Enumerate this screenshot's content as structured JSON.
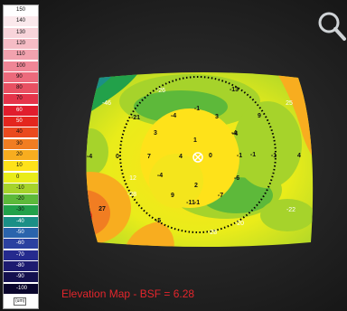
{
  "scale": {
    "unit": "(um)",
    "steps": [
      {
        "label": "150",
        "color": "#ffffff"
      },
      {
        "label": "140",
        "color": "#fbe9ec"
      },
      {
        "label": "130",
        "color": "#f8d4da"
      },
      {
        "label": "120",
        "color": "#f5bcc5"
      },
      {
        "label": "110",
        "color": "#f2a2ae"
      },
      {
        "label": "100",
        "color": "#ef8696"
      },
      {
        "label": "90",
        "color": "#ec6a7c"
      },
      {
        "label": "80",
        "color": "#e85062"
      },
      {
        "label": "70",
        "color": "#e5344a"
      },
      {
        "label": "60",
        "color": "#e11d2d"
      },
      {
        "label": "50",
        "color": "#e4261e"
      },
      {
        "label": "40",
        "color": "#ea4a1f"
      },
      {
        "label": "30",
        "color": "#f17d22"
      },
      {
        "label": "20",
        "color": "#f8ad1f"
      },
      {
        "label": "10",
        "color": "#fee21a"
      },
      {
        "label": "0",
        "color": "#e9ec1a"
      },
      {
        "label": "-10",
        "color": "#a6d32b"
      },
      {
        "label": "-20",
        "color": "#5db93a"
      },
      {
        "label": "-30",
        "color": "#22a14a"
      },
      {
        "label": "-40",
        "color": "#1b8f86"
      },
      {
        "label": "-50",
        "color": "#2a64ac"
      },
      {
        "label": "-60",
        "color": "#2b41a0"
      },
      {
        "label": "-70",
        "color": "#252a8e"
      },
      {
        "label": "-80",
        "color": "#1d1b70"
      },
      {
        "label": "-90",
        "color": "#14104e"
      },
      {
        "label": "-100",
        "color": "#0a062c"
      }
    ]
  },
  "map": {
    "values": [
      "-26",
      "-13",
      "-46",
      "25",
      "-21",
      "-4",
      "-1",
      "3",
      "9",
      "-4",
      "0",
      "3",
      "1",
      "-4",
      "-4",
      "7",
      "4",
      "0",
      "-1",
      "-1",
      "-1",
      "4",
      "-4",
      "12",
      "-6",
      "-28",
      "2",
      "-7",
      "-11",
      "9",
      "-1",
      "-22",
      "27",
      "-5",
      "-28",
      "-20"
    ]
  },
  "caption": "Elevation Map - BSF = 6.28",
  "toolbar": {
    "zoom_icon": "magnifier-icon"
  }
}
